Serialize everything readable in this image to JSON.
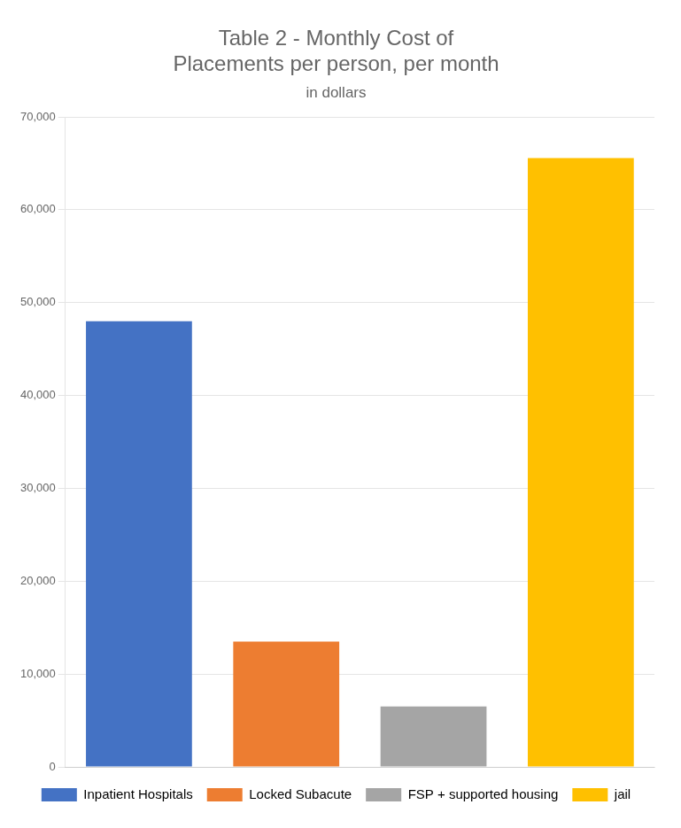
{
  "chart_data": {
    "type": "bar",
    "title": "Table 2 - Monthly Cost of\nPlacements per person, per month",
    "subtitle": "in dollars",
    "categories": [
      "Inpatient Hospitals",
      "Locked Subacute",
      "FSP + supported housing",
      "jail"
    ],
    "values": [
      48000,
      13500,
      6500,
      65575
    ],
    "colors": [
      "#4472C4",
      "#ED7D31",
      "#A5A5A5",
      "#FFC000"
    ],
    "ylim": [
      0,
      70000
    ],
    "yticks": [
      0,
      {
        "value": 10000,
        "label": "10,000"
      },
      {
        "value": 20000,
        "label": "20,000"
      },
      {
        "value": 30000,
        "label": "30,000"
      },
      {
        "value": 40000,
        "label": "40,000"
      },
      {
        "value": 50000,
        "label": "50,000"
      },
      {
        "value": 60000,
        "label": "60,000"
      },
      {
        "value": 70000,
        "label": "70,000"
      }
    ],
    "grid": true,
    "legend": "bottom",
    "tick_labels": "y"
  }
}
